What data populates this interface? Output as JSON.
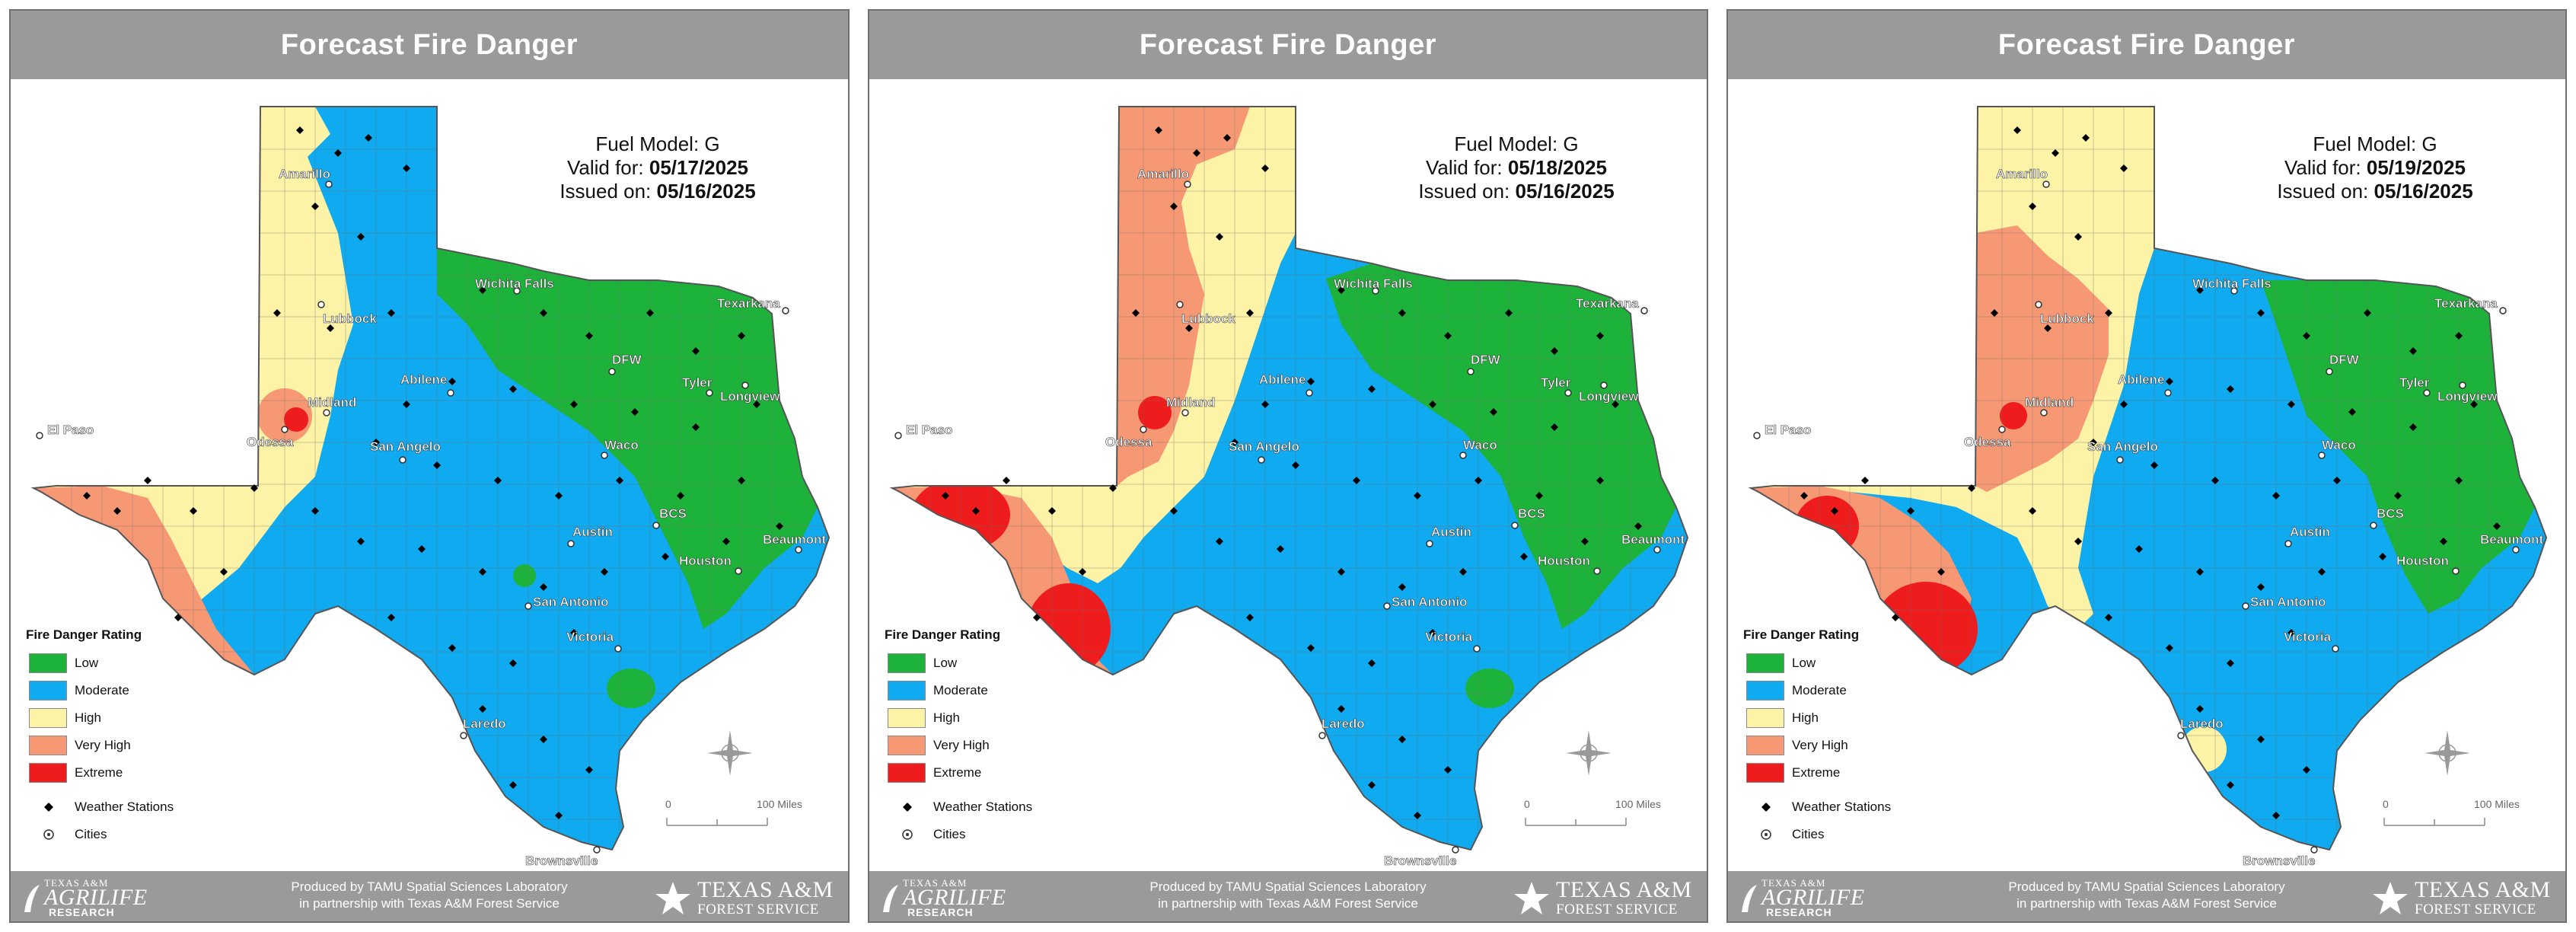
{
  "colors": {
    "low": "#1db33a",
    "moderate": "#10aaf0",
    "high": "#fdf3a7",
    "very_high": "#f79874",
    "extreme": "#ee1c1c",
    "header": "#9a9a9a"
  },
  "legend": {
    "title": "Fire Danger Rating",
    "items": [
      {
        "label": "Low",
        "color": "#1db33a"
      },
      {
        "label": "Moderate",
        "color": "#10aaf0"
      },
      {
        "label": "High",
        "color": "#fdf3a7"
      },
      {
        "label": "Very High",
        "color": "#f79874"
      },
      {
        "label": "Extreme",
        "color": "#ee1c1c"
      }
    ],
    "weather_stations": "Weather Stations",
    "cities": "Cities"
  },
  "scale": {
    "zero": "0",
    "miles": "100 Miles"
  },
  "footer": {
    "credit_line1": "Produced by TAMU Spatial Sciences Laboratory",
    "credit_line2": "in partnership with Texas A&M Forest Service",
    "agrilife_top": "TEXAS A&M",
    "agrilife_main": "AGRILIFE",
    "agrilife_bottom": "RESEARCH",
    "tfs_line1": "TEXAS A&M",
    "tfs_line2": "FOREST SERVICE"
  },
  "city_names": [
    "Amarillo",
    "Lubbock",
    "Wichita Falls",
    "Texarkana",
    "DFW",
    "Abilene",
    "Tyler",
    "Longview",
    "El Paso",
    "Midland",
    "Odessa",
    "San Angelo",
    "Waco",
    "BCS",
    "Austin",
    "Beaumont",
    "Houston",
    "San Antonio",
    "Victoria",
    "Laredo",
    "Brownsville"
  ],
  "panels": [
    {
      "title": "Forecast Fire Danger",
      "fuel_model_label": "Fuel Model:",
      "fuel_model": "G",
      "valid_label": "Valid for:",
      "valid_date": "05/17/2025",
      "issued_label": "Issued on:",
      "issued_date": "05/16/2025"
    },
    {
      "title": "Forecast Fire Danger",
      "fuel_model_label": "Fuel Model:",
      "fuel_model": "G",
      "valid_label": "Valid for:",
      "valid_date": "05/18/2025",
      "issued_label": "Issued on:",
      "issued_date": "05/16/2025"
    },
    {
      "title": "Forecast Fire Danger",
      "fuel_model_label": "Fuel Model:",
      "fuel_model": "G",
      "valid_label": "Valid for:",
      "valid_date": "05/19/2025",
      "issued_label": "Issued on:",
      "issued_date": "05/16/2025"
    }
  ]
}
